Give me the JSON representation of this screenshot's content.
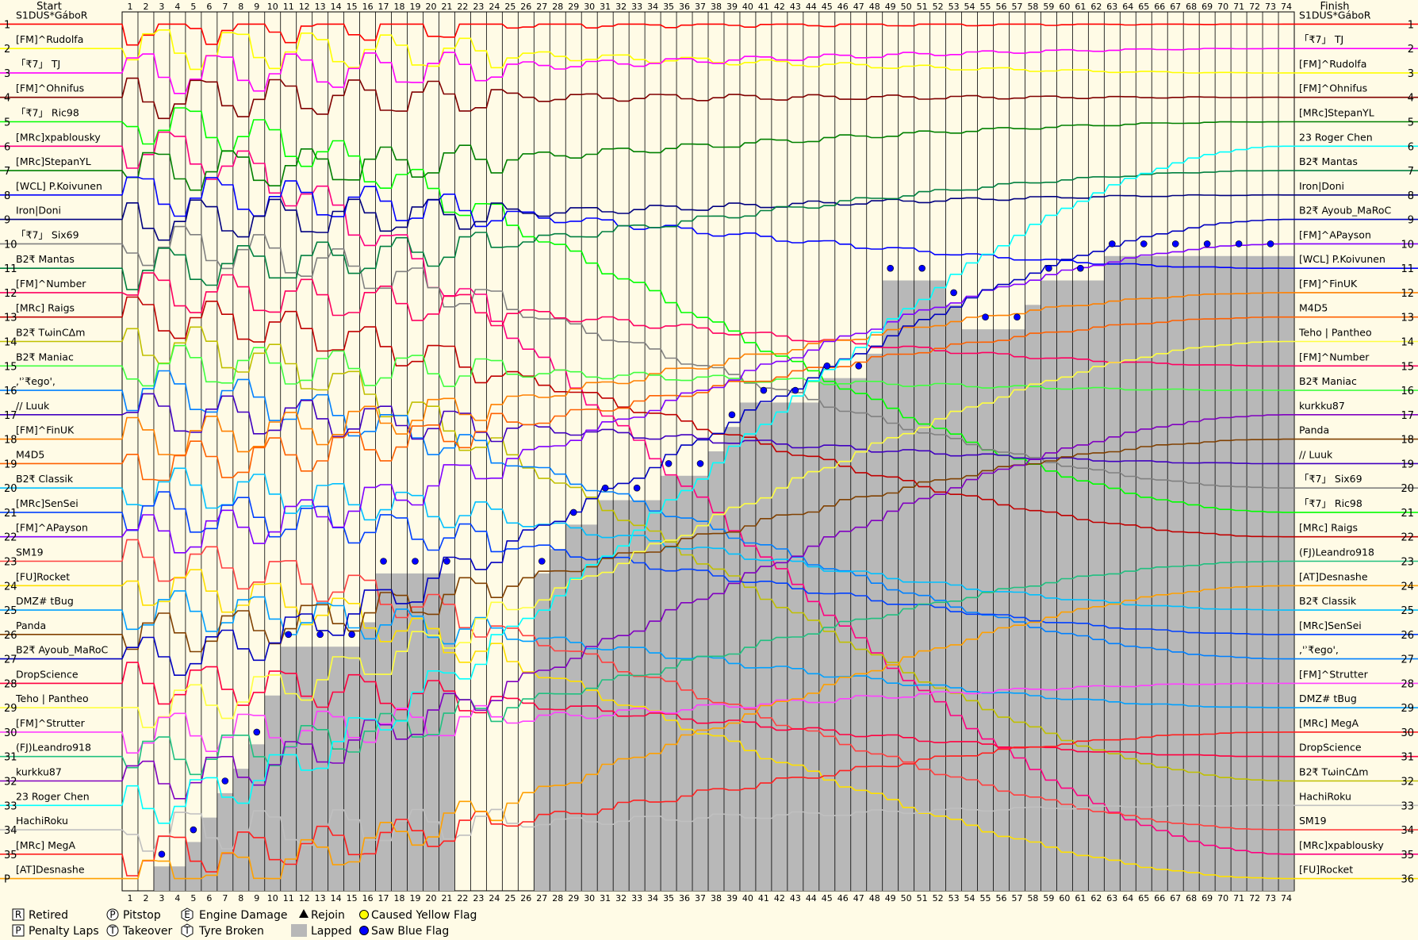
{
  "chart_data": {
    "type": "line",
    "title": "",
    "header_start": "Start",
    "header_finish": "Finish",
    "laps_total": 74,
    "positions": [
      "1",
      "2",
      "3",
      "4",
      "5",
      "6",
      "7",
      "8",
      "9",
      "10",
      "11",
      "12",
      "13",
      "14",
      "15",
      "16",
      "17",
      "18",
      "19",
      "20",
      "21",
      "22",
      "23",
      "24",
      "25",
      "26",
      "27",
      "28",
      "29",
      "30",
      "31",
      "32",
      "33",
      "34",
      "35",
      "P"
    ],
    "right_positions": [
      "1",
      "2",
      "3",
      "4",
      "5",
      "6",
      "7",
      "8",
      "9",
      "10",
      "11",
      "12",
      "13",
      "14",
      "15",
      "16",
      "17",
      "18",
      "19",
      "20",
      "21",
      "22",
      "23",
      "24",
      "25",
      "26",
      "27",
      "28",
      "29",
      "30",
      "31",
      "32",
      "33",
      "34",
      "35",
      "36"
    ],
    "start_order": [
      "S1DUS*GáboR",
      "[FM]^Rudolfa",
      "「₹7」 TJ",
      "[FM]^Ohnifus",
      "「₹7」 Ric98",
      "[MRc]xpablousky",
      "[MRc]StepanYL",
      "[WCL] P.Koivunen",
      "Iron|Doni",
      "「₹7」 Six69",
      "B2₹ Mantas",
      "[FM]^Number",
      "[MRc] Raigs",
      "B2₹ TωinCΔm",
      "B2₹ Maniac",
      ",'ʾ₹ego',",
      "// Luuk",
      "[FM]^FinUK",
      "M4D5",
      "B2₹ Classik",
      "[MRc]SenSei",
      "[FM]^APayson",
      "SM19",
      "[FU]Rocket",
      "DMZ# tBug",
      "Panda",
      "B2₹ Ayoub_MaRoC",
      "DropScience",
      "Teho | Pantheo",
      "[FM]^Strutter",
      "(FJ)Leandro918",
      "kurkku87",
      "23 Roger Chen",
      "HachiRoku",
      "[MRc] MegA",
      "[AT]Desnashe"
    ],
    "finish_order": [
      "S1DUS*GáboR",
      "「₹7」 TJ",
      "[FM]^Rudolfa",
      "[FM]^Ohnifus",
      "[MRc]StepanYL",
      "23 Roger Chen",
      "B2₹ Mantas",
      "Iron|Doni",
      "B2₹ Ayoub_MaRoC",
      "[FM]^APayson",
      "[WCL] P.Koivunen",
      "[FM]^FinUK",
      "M4D5",
      "Teho | Pantheo",
      "[FM]^Number",
      "B2₹ Maniac",
      "kurkku87",
      "Panda",
      "// Luuk",
      "「₹7」 Six69",
      "「₹7」 Ric98",
      "[MRc] Raigs",
      "(FJ)Leandro918",
      "[AT]Desnashe",
      "B2₹ Classik",
      "[MRc]SenSei",
      ",'ʾ₹ego',",
      "[FM]^Strutter",
      "DMZ# tBug",
      "[MRc] MegA",
      "DropScience",
      "B2₹ TωinCΔm",
      "HachiRoku",
      "SM19",
      "[MRc]xpablousky",
      "[FU]Rocket"
    ],
    "finish_laps_labels": [
      "1",
      "2",
      "3",
      "4",
      "5",
      "6",
      "7",
      "8",
      "9",
      "10",
      "11",
      "12",
      "13",
      "14",
      "15",
      "16",
      "17",
      "18",
      "19",
      "20",
      "21",
      "22",
      "23",
      "24",
      "25",
      "26",
      "27",
      "28",
      "29",
      "30",
      "31",
      "32",
      "33",
      "34",
      "35",
      "36"
    ],
    "lapped_profile": [
      36,
      36,
      35,
      35,
      34,
      33,
      32,
      31,
      30,
      28,
      26,
      26,
      26,
      26,
      26,
      25,
      23,
      23,
      23,
      23,
      23,
      36,
      36,
      36,
      36,
      36,
      23,
      22,
      21,
      21,
      20,
      20,
      20,
      20,
      19,
      19,
      19,
      18,
      17,
      16,
      16,
      16,
      16,
      16,
      15,
      15,
      15,
      14,
      11,
      11,
      11,
      11,
      12,
      13,
      13,
      13,
      13,
      12,
      11,
      11,
      11,
      11,
      10,
      10,
      10,
      10,
      10,
      10,
      10,
      10,
      10,
      10,
      10,
      10
    ],
    "colors": [
      "#ff0000",
      "#ffff00",
      "#ff00ff",
      "#800000",
      "#00ff00",
      "#ff0080",
      "#008000",
      "#0000ff",
      "#000080",
      "#808080",
      "#008040",
      "#ff0060",
      "#c00000",
      "#c0c000",
      "#40ff40",
      "#0080ff",
      "#4000c0",
      "#ff8000",
      "#ff6000",
      "#00c0ff",
      "#0040ff",
      "#8000ff",
      "#ff4040",
      "#ffe000",
      "#00a0ff",
      "#804000",
      "#0000c0",
      "#ff0040",
      "#ffff40",
      "#ff40ff",
      "#20c080",
      "#8000c0",
      "#00ffff",
      "#c0c0c0",
      "#ff2020",
      "#ffa000"
    ]
  },
  "legend": {
    "retired": {
      "symbol": "R",
      "label": "Retired"
    },
    "penalty": {
      "symbol": "P",
      "label": "Penalty Laps"
    },
    "pitstop": {
      "symbol": "P",
      "label": "Pitstop"
    },
    "takeover": {
      "symbol": "T",
      "label": "Takeover"
    },
    "engine": {
      "symbol": "E",
      "label": "Engine Damage"
    },
    "tyre": {
      "symbol": "T",
      "label": "Tyre Broken"
    },
    "rejoin": {
      "label": "Rejoin"
    },
    "lapped": {
      "label": "Lapped"
    },
    "yellow": {
      "label": "Caused Yellow Flag"
    },
    "blue": {
      "label": "Saw Blue Flag"
    }
  }
}
